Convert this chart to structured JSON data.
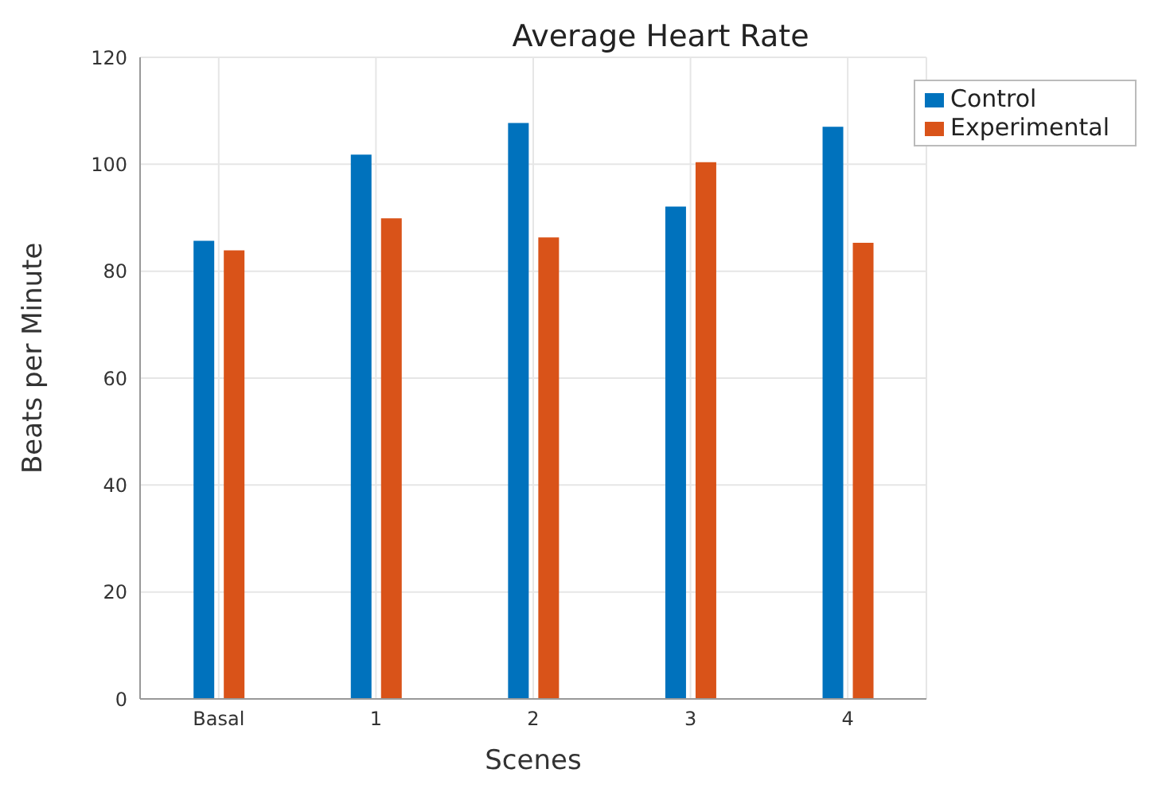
{
  "chart_data": {
    "type": "bar",
    "title": "Average Heart Rate",
    "xlabel": "Scenes",
    "ylabel": "Beats per Minute",
    "categories": [
      "Basal",
      "1",
      "2",
      "3",
      "4"
    ],
    "series": [
      {
        "name": "Control",
        "color": "#0072bd",
        "values": [
          85.7,
          101.8,
          107.7,
          92.1,
          107
        ]
      },
      {
        "name": "Experimental",
        "color": "#d95319",
        "values": [
          83.9,
          89.9,
          86.3,
          100.4,
          85.3
        ]
      }
    ],
    "ylim": [
      0,
      120
    ],
    "yticks": [
      0,
      20,
      40,
      60,
      80,
      100,
      120
    ],
    "grid": true,
    "legend": "top right"
  }
}
